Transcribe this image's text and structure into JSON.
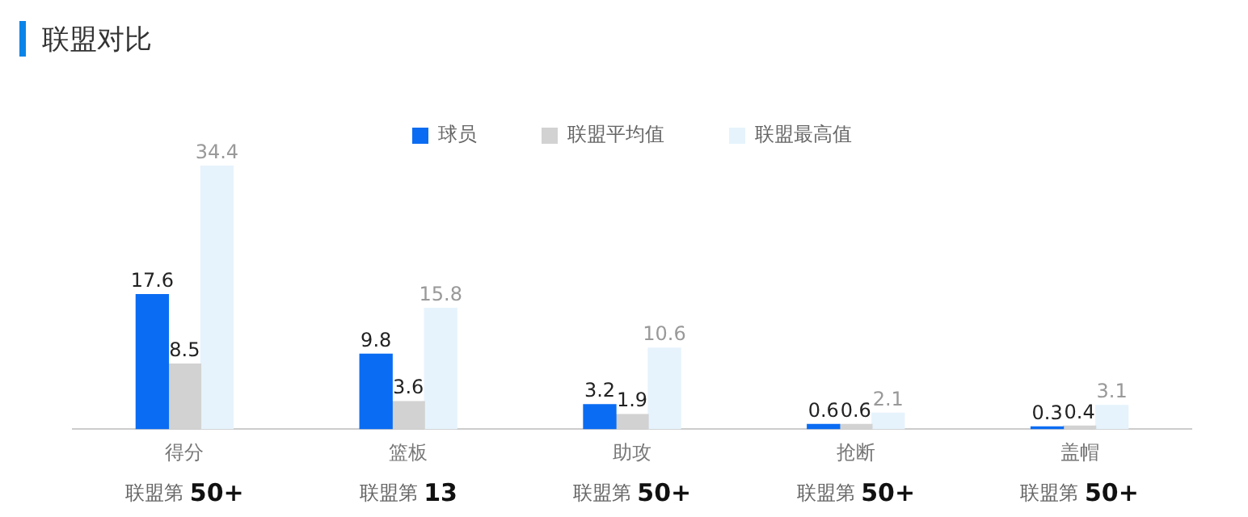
{
  "chart_data": {
    "type": "bar",
    "title": "联盟对比",
    "categories": [
      "得分",
      "篮板",
      "助攻",
      "抢断",
      "盖帽"
    ],
    "series": [
      {
        "name": "球员",
        "color": "#0a6cf2",
        "values": [
          17.6,
          9.8,
          3.2,
          0.6,
          0.3
        ]
      },
      {
        "name": "联盟平均值",
        "color": "#d2d2d2",
        "values": [
          8.5,
          3.6,
          1.9,
          0.6,
          0.4
        ]
      },
      {
        "name": "联盟最高值",
        "color": "#e6f3fc",
        "values": [
          34.4,
          15.8,
          10.6,
          2.1,
          3.1
        ]
      }
    ],
    "data_labels": true,
    "legend": "top",
    "grid": false,
    "tick_labels": "x",
    "annotations": [
      "联盟第 50+",
      "联盟第 13",
      "联盟第 50+",
      "联盟第 50+",
      "联盟第 50+"
    ]
  }
}
